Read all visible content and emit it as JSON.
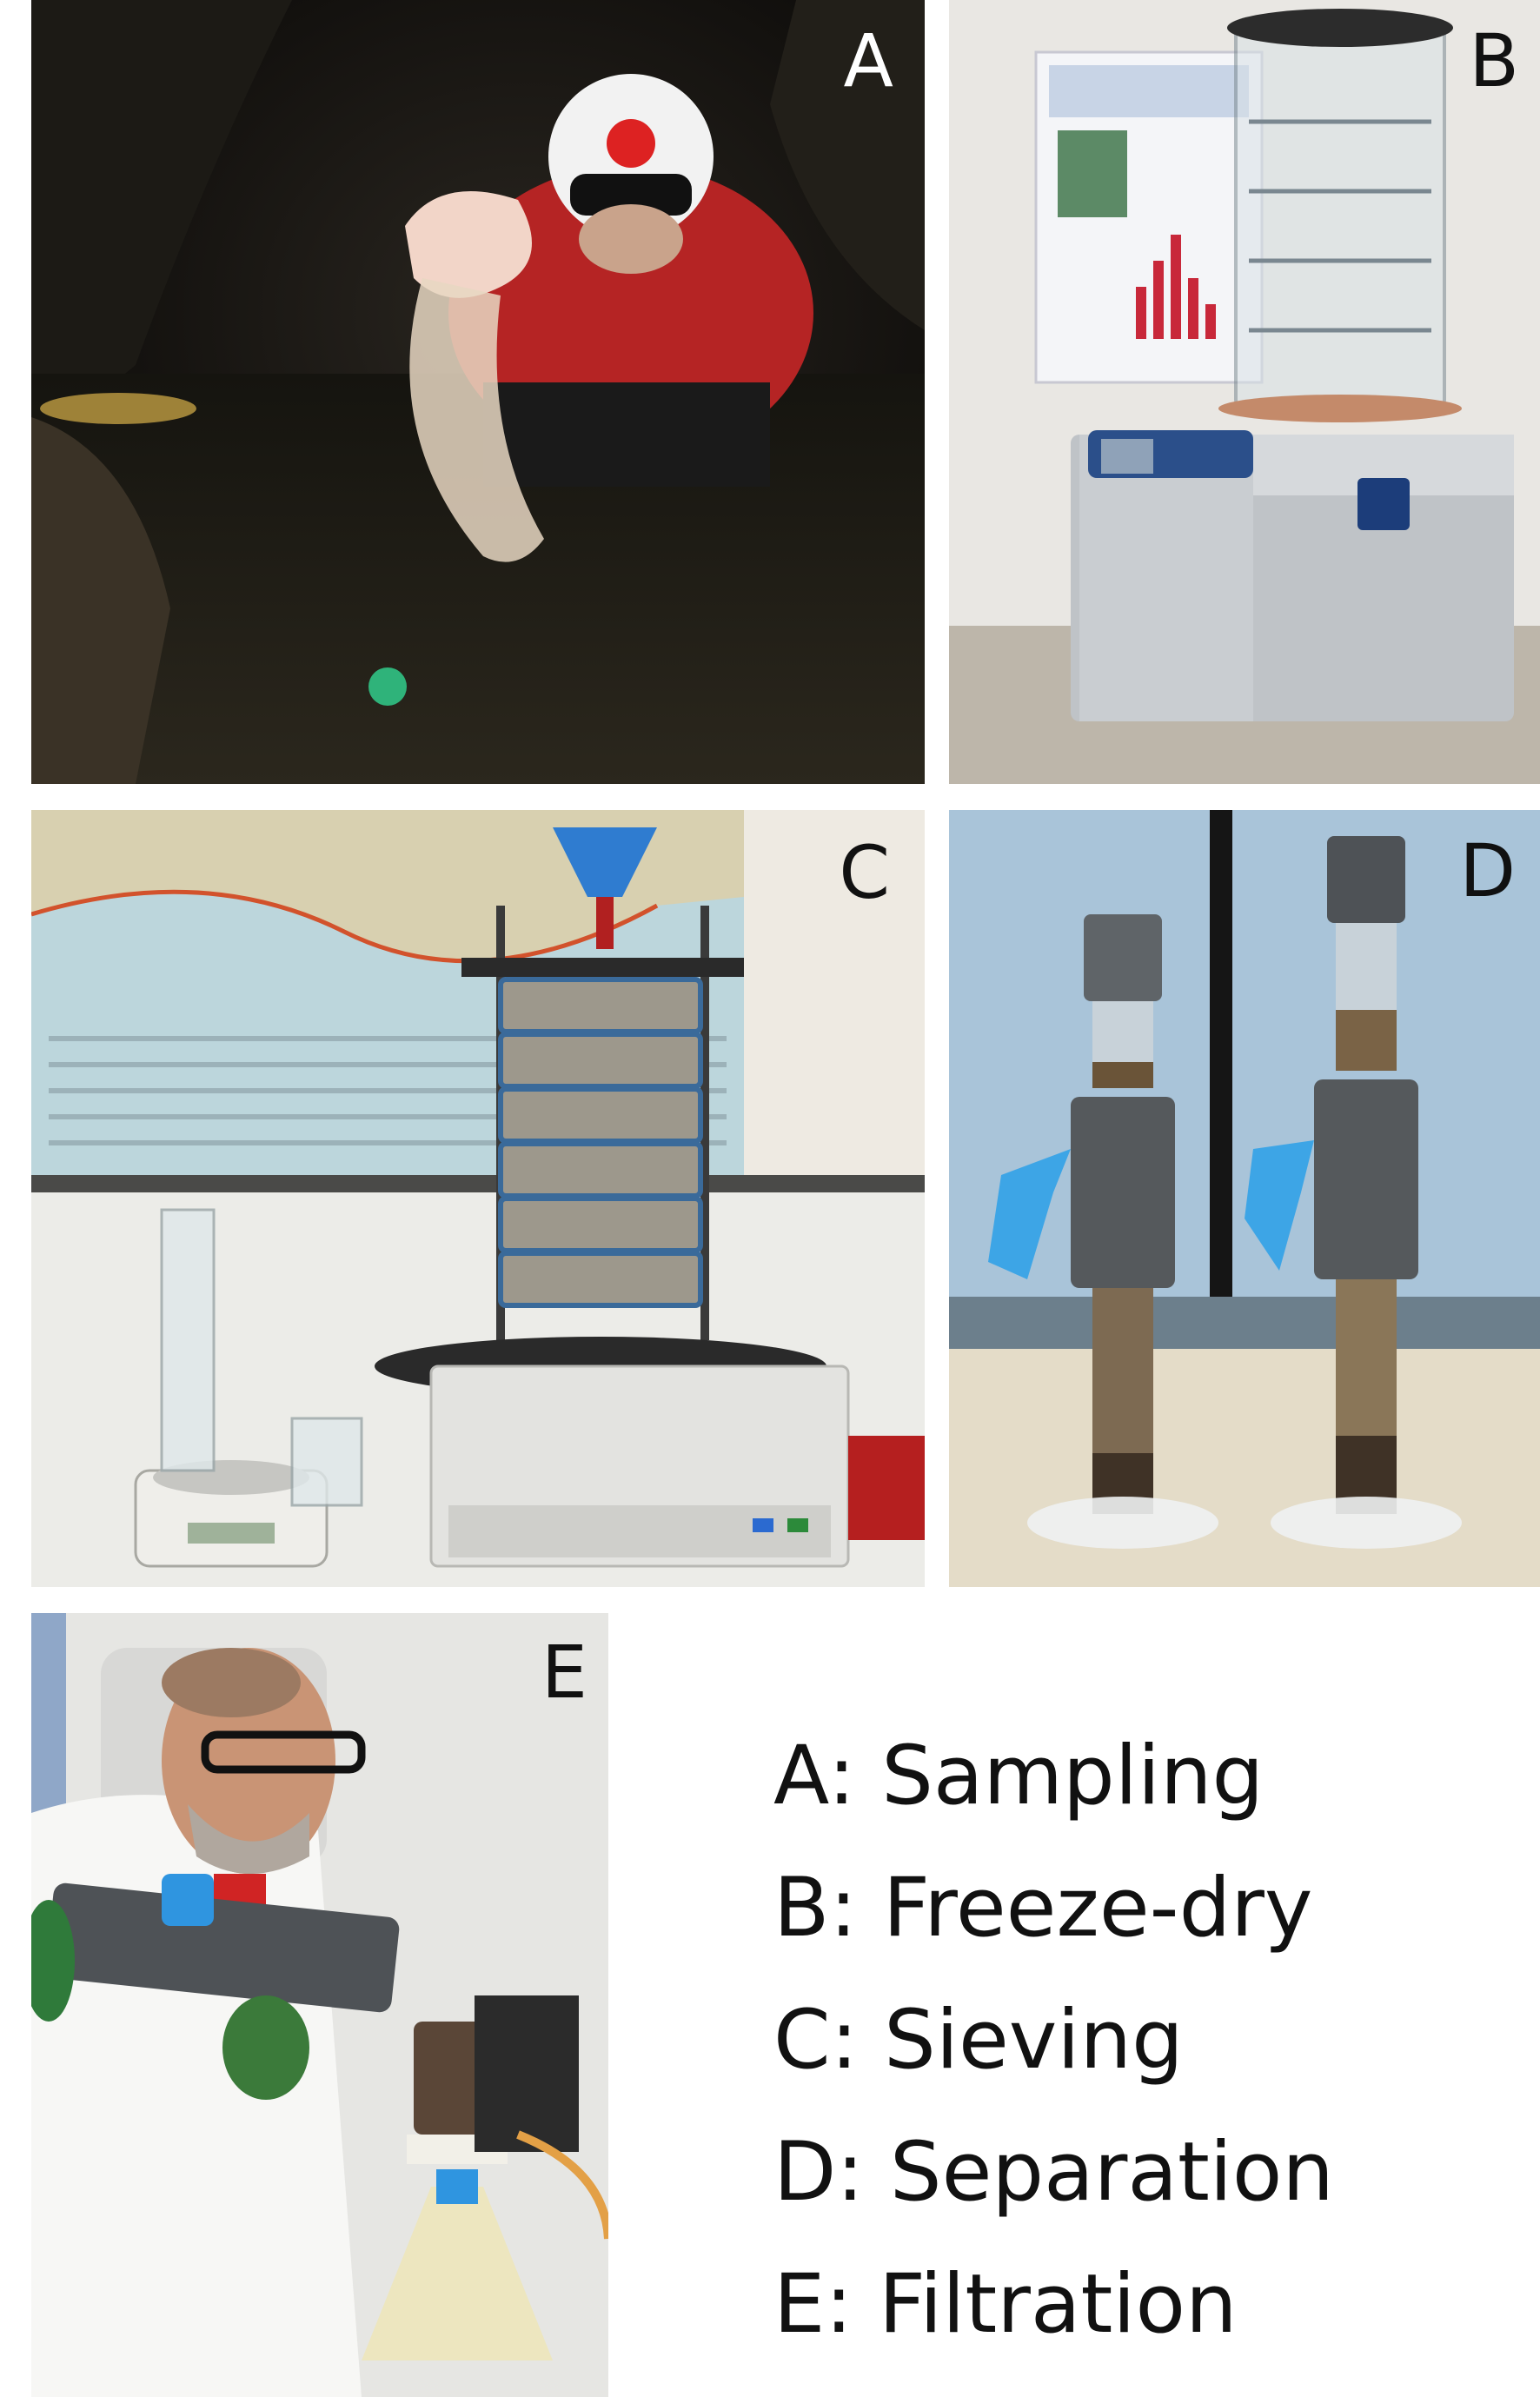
{
  "panels": [
    {
      "letter": "A"
    },
    {
      "letter": "B"
    },
    {
      "letter": "C"
    },
    {
      "letter": "D"
    },
    {
      "letter": "E"
    }
  ],
  "legend": [
    "A: Sampling",
    "B: Freeze-dry",
    "C: Sieving",
    "D: Separation",
    "E: Filtration"
  ]
}
